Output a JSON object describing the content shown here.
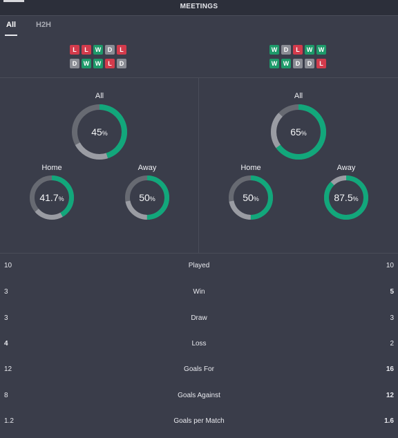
{
  "header": {
    "title": "MEETINGS"
  },
  "tabs": [
    {
      "label": "All",
      "active": true
    },
    {
      "label": "H2H",
      "active": false
    }
  ],
  "left_team": {
    "form_rows": [
      [
        "L",
        "L",
        "W",
        "D",
        "L"
      ],
      [
        "D",
        "W",
        "W",
        "L",
        "D"
      ]
    ],
    "all": {
      "label": "All",
      "value": "45",
      "unit": "%",
      "pct": 45
    },
    "home": {
      "label": "Home",
      "value": "41.7",
      "unit": "%",
      "pct": 41.7
    },
    "away": {
      "label": "Away",
      "value": "50",
      "unit": "%",
      "pct": 50
    }
  },
  "right_team": {
    "form_rows": [
      [
        "W",
        "D",
        "L",
        "W",
        "W"
      ],
      [
        "W",
        "W",
        "D",
        "D",
        "L"
      ]
    ],
    "all": {
      "label": "All",
      "value": "65",
      "unit": "%",
      "pct": 65
    },
    "home": {
      "label": "Home",
      "value": "50",
      "unit": "%",
      "pct": 50
    },
    "away": {
      "label": "Away",
      "value": "87.5",
      "unit": "%",
      "pct": 87.5
    }
  },
  "stats": [
    {
      "label": "Played",
      "left": "10",
      "right": "10",
      "left_bold": false,
      "right_bold": false
    },
    {
      "label": "Win",
      "left": "3",
      "right": "5",
      "left_bold": false,
      "right_bold": true
    },
    {
      "label": "Draw",
      "left": "3",
      "right": "3",
      "left_bold": false,
      "right_bold": false
    },
    {
      "label": "Loss",
      "left": "4",
      "right": "2",
      "left_bold": true,
      "right_bold": false
    },
    {
      "label": "Goals For",
      "left": "12",
      "right": "16",
      "left_bold": false,
      "right_bold": true
    },
    {
      "label": "Goals Against",
      "left": "8",
      "right": "12",
      "left_bold": false,
      "right_bold": true
    },
    {
      "label": "Goals per Match",
      "left": "1.2",
      "right": "1.6",
      "left_bold": false,
      "right_bold": true
    }
  ],
  "colors": {
    "win": "#1e9a6a",
    "loss": "#d33b4c",
    "draw": "#8a8c94",
    "ring_fill": "#12a77b",
    "ring_track": "#676a72",
    "ring_second": "#9a9ca3"
  }
}
